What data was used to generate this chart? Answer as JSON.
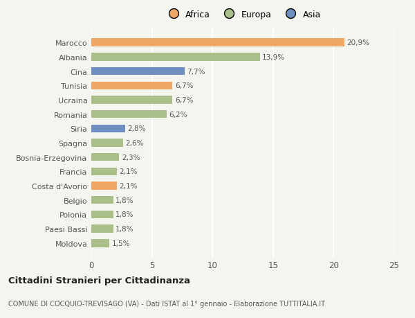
{
  "categories": [
    "Moldova",
    "Paesi Bassi",
    "Polonia",
    "Belgio",
    "Costa d'Avorio",
    "Francia",
    "Bosnia-Erzegovina",
    "Spagna",
    "Siria",
    "Romania",
    "Ucraina",
    "Tunisia",
    "Cina",
    "Albania",
    "Marocco"
  ],
  "values": [
    1.5,
    1.8,
    1.8,
    1.8,
    2.1,
    2.1,
    2.3,
    2.6,
    2.8,
    6.2,
    6.7,
    6.7,
    7.7,
    13.9,
    20.9
  ],
  "bar_colors": [
    "#AABF8A",
    "#AABF8A",
    "#AABF8A",
    "#AABF8A",
    "#F0A868",
    "#AABF8A",
    "#AABF8A",
    "#AABF8A",
    "#6E8FBF",
    "#AABF8A",
    "#AABF8A",
    "#F0A868",
    "#6E8FBF",
    "#AABF8A",
    "#F0A868"
  ],
  "labels": [
    "1,5%",
    "1,8%",
    "1,8%",
    "1,8%",
    "2,1%",
    "2,1%",
    "2,3%",
    "2,6%",
    "2,8%",
    "6,2%",
    "6,7%",
    "6,7%",
    "7,7%",
    "13,9%",
    "20,9%"
  ],
  "xlim": [
    0,
    25
  ],
  "xticks": [
    0,
    5,
    10,
    15,
    20,
    25
  ],
  "title": "Cittadini Stranieri per Cittadinanza",
  "subtitle": "COMUNE DI COCQUIO-TREVISAGO (VA) - Dati ISTAT al 1° gennaio - Elaborazione TUTTITALIA.IT",
  "bg_color": "#f5f5f0",
  "bar_height": 0.55,
  "legend_items": [
    "Africa",
    "Europa",
    "Asia"
  ],
  "legend_colors": [
    "#F0A868",
    "#AABF8A",
    "#6E8FBF"
  ]
}
